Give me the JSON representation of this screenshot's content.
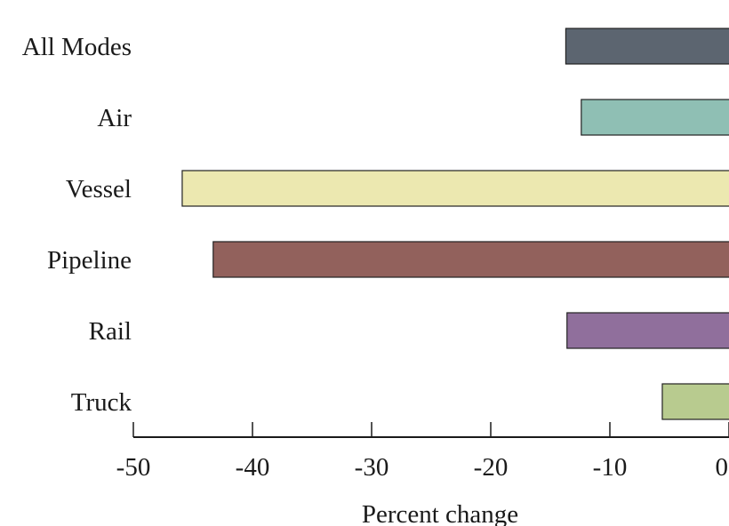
{
  "chart_data": {
    "type": "bar",
    "orientation": "horizontal",
    "title": "",
    "xlabel": "Percent change",
    "ylabel": "",
    "categories": [
      "All Modes",
      "Air",
      "Vessel",
      "Pipeline",
      "Rail",
      "Truck"
    ],
    "values": [
      -13.7,
      -12.4,
      -45.9,
      -43.3,
      -13.6,
      -5.6
    ],
    "colors": [
      "#5c6570",
      "#8fbfb4",
      "#ece8b0",
      "#92615c",
      "#906f9c",
      "#b8cb8f"
    ],
    "xlim": [
      -50,
      0
    ],
    "xticks": [
      -50,
      -40,
      -30,
      -20,
      -10,
      0
    ],
    "xtick_labels": [
      "-50",
      "-40",
      "-30",
      "-20",
      "-10",
      "0"
    ],
    "grid": false,
    "legend": "none"
  }
}
